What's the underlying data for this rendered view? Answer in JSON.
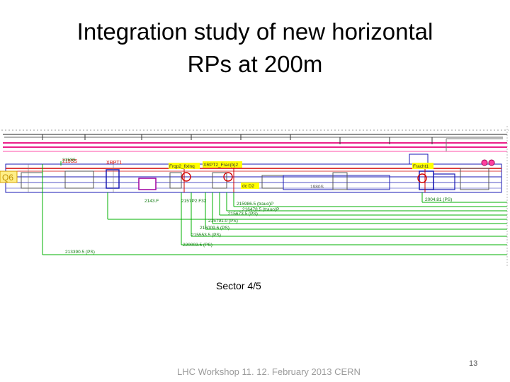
{
  "slide": {
    "title_line1": "Integration study of new horizontal",
    "title_line2": "RPs at 200m",
    "caption": "Sector 4/5",
    "footer": "LHC Workshop 11. 12. February 2013 CERN",
    "page_number": "13"
  },
  "diagram": {
    "quad_label": "Q6",
    "yellow_labels": [
      "Frqp2_fixlnq",
      "XRPT2_Frac(b)2",
      "Fracht1",
      "dc D2",
      "1980S"
    ],
    "red_labels": [
      "XRPT1",
      "215SS"
    ],
    "distance_labels": [
      "215S5",
      "2143.F",
      "2157P2.F32",
      "215986.5 (trauo)P",
      "216478.5 (trauo)P",
      "215673.5 (PS)",
      "215791.0 (PS)",
      "216009.6 (PS)",
      "215553.5 (PS)",
      "220003.5 (PS)",
      "213390.5 (PS)",
      "2004.81 (PS)"
    ],
    "colors": {
      "beam_top": "#e8007a",
      "beam_red": "#d20000",
      "dimension": "#00b000",
      "tunnel": "#1a1ab4",
      "label_fill": "#ffff00"
    }
  }
}
